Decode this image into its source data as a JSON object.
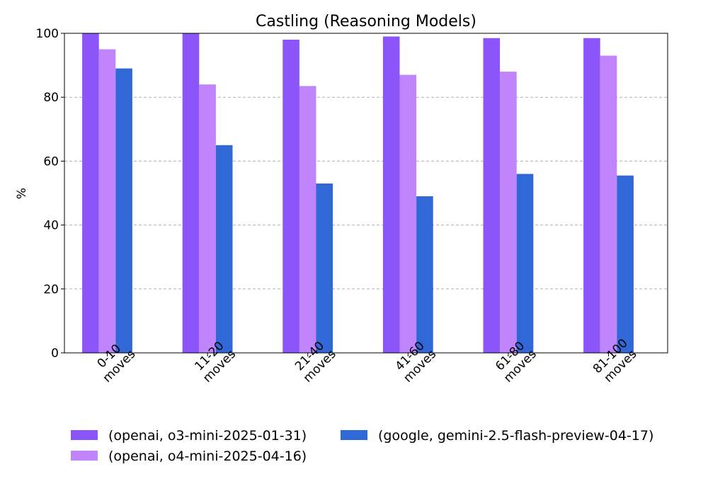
{
  "chart_data": {
    "type": "bar",
    "title": "Castling (Reasoning Models)",
    "xlabel": "",
    "ylabel": "%",
    "ylim": [
      0,
      100
    ],
    "yticks": [
      0,
      20,
      40,
      60,
      80,
      100
    ],
    "grid": "horizontal dashed",
    "legend_position": "bottom",
    "categories": [
      [
        "0-10",
        "moves"
      ],
      [
        "11-20",
        "moves"
      ],
      [
        "21-40",
        "moves"
      ],
      [
        "41-60",
        "moves"
      ],
      [
        "61-80",
        "moves"
      ],
      [
        "81-100",
        "moves"
      ]
    ],
    "series": [
      {
        "name": "(openai, o3-mini-2025-01-31)",
        "color": "#8b55fa",
        "values": [
          100,
          100,
          98,
          99,
          98.5,
          98.5
        ]
      },
      {
        "name": "(openai, o4-mini-2025-04-16)",
        "color": "#c084fc",
        "values": [
          95,
          84,
          83.5,
          87,
          88,
          93
        ]
      },
      {
        "name": "(google, gemini-2.5-flash-preview-04-17)",
        "color": "#3168d8",
        "values": [
          89,
          65,
          53,
          49,
          56,
          55.5
        ]
      }
    ]
  }
}
